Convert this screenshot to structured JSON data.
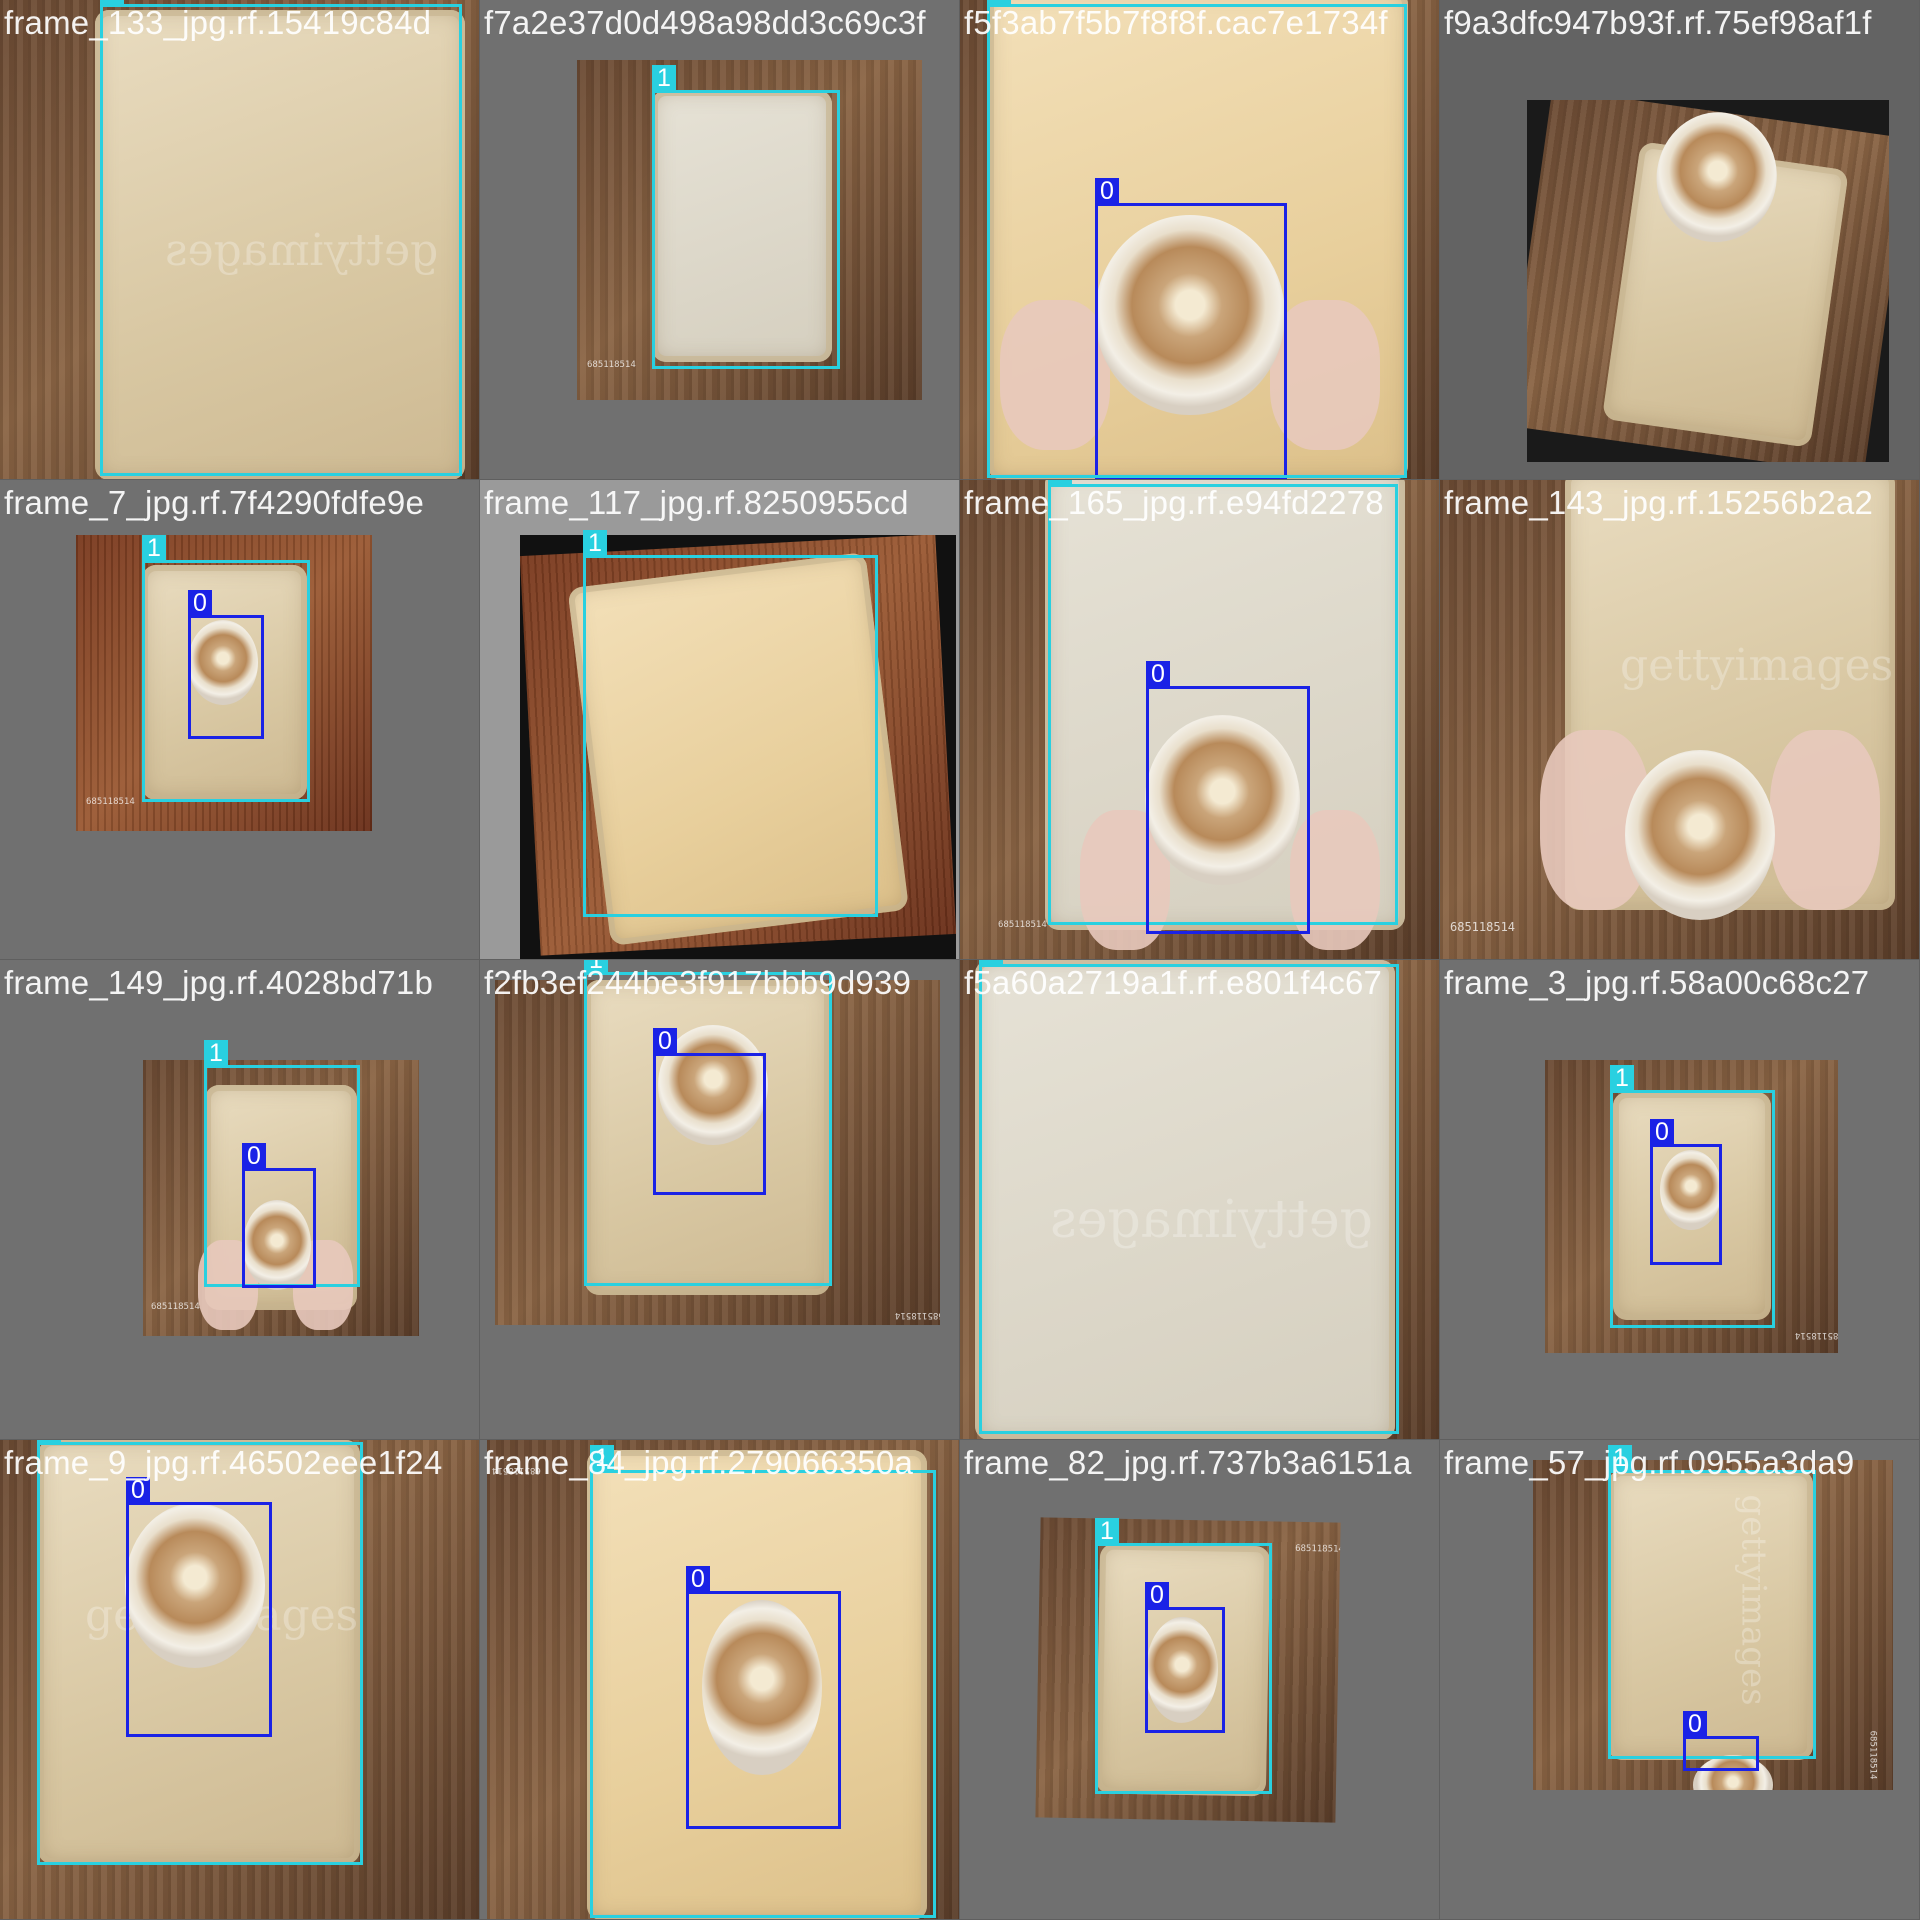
{
  "colors": {
    "class_0": "#1a22e6",
    "class_1": "#29d0e0",
    "canvas": "#727272"
  },
  "tiles": [
    {
      "filename": "frame_133_jpg.rf.15419c84d",
      "labels": [
        "1"
      ]
    },
    {
      "filename": "f7a2e37d0d498a98dd3c69c3f",
      "labels": [
        "1"
      ]
    },
    {
      "filename": "f5f3ab7f5b7f8f8f.cac7e1734f",
      "labels": [
        "0",
        "1"
      ]
    },
    {
      "filename": "f9a3dfc947b93f.rf.75ef98af1f",
      "labels": []
    },
    {
      "filename": "frame_7_jpg.rf.7f4290fdfe9e",
      "labels": [
        "1",
        "0"
      ]
    },
    {
      "filename": "frame_117_jpg.rf.8250955cd",
      "labels": [
        "1"
      ]
    },
    {
      "filename": "frame_165_jpg.rf.e94fd2278",
      "labels": [
        "1",
        "0"
      ]
    },
    {
      "filename": "frame_143_jpg.rf.15256b2a2",
      "labels": []
    },
    {
      "filename": "frame_149_jpg.rf.4028bd71b",
      "labels": [
        "1",
        "0"
      ]
    },
    {
      "filename": "f2fb3ef244be3f917bbb9d939",
      "labels": [
        "1",
        "0"
      ]
    },
    {
      "filename": "f5a60a2719a1f.rf.e801f4c67",
      "labels": [
        "1"
      ]
    },
    {
      "filename": "frame_3_jpg.rf.58a00c68c27",
      "labels": [
        "1",
        "0"
      ]
    },
    {
      "filename": "frame_9_jpg.rf.46502eee1f24",
      "labels": [
        "1",
        "0"
      ]
    },
    {
      "filename": "frame_84_jpg.rf.279066350a",
      "labels": [
        "1",
        "0"
      ]
    },
    {
      "filename": "frame_82_jpg.rf.737b3a6151a",
      "labels": [
        "1",
        "0"
      ]
    },
    {
      "filename": "frame_57_jpg.rf.0955a3da9",
      "labels": [
        "1",
        "0"
      ]
    }
  ],
  "watermark": "gettyimages",
  "stock_id": "685118514"
}
